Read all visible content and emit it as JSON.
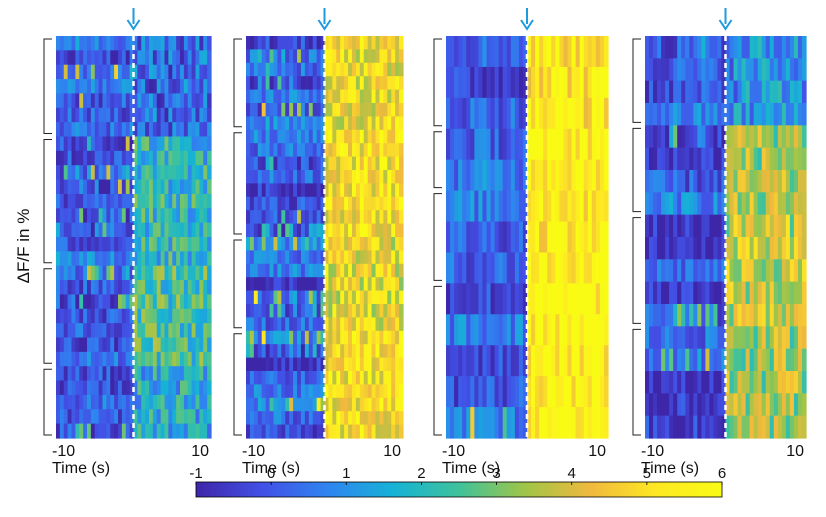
{
  "chart_data": {
    "type": "heatmap",
    "ylabel": "ΔF/F in %",
    "colorbar": {
      "min": -1,
      "max": 6,
      "ticks": [
        "-1",
        "0",
        "1",
        "2",
        "3",
        "4",
        "5",
        "6"
      ],
      "colormap": [
        "#3e26a8",
        "#4250e6",
        "#2f84f0",
        "#16b2d6",
        "#3fc29b",
        "#9fc548",
        "#f0b93d",
        "#fde823",
        "#f9fb15"
      ]
    },
    "event_marker": {
      "time": 0,
      "arrow_color": "#1e9be0",
      "line_color": "#ffffff"
    },
    "panels": [
      {
        "xlabel": "Time (s)",
        "x_range": [
          -10,
          10
        ],
        "x_ticklabels": [
          "-10",
          "10"
        ],
        "trace_count": 28,
        "groups": [
          7,
          9,
          7,
          5
        ],
        "response_level_per_group": [
          0.25,
          1.9,
          2.4,
          1.6
        ]
      },
      {
        "xlabel": "Time (s)",
        "x_range": [
          -10,
          10
        ],
        "x_ticklabels": [
          "-10",
          "10"
        ],
        "trace_count": 30,
        "groups": [
          7,
          8,
          7,
          8
        ],
        "response_level_per_group": [
          4.6,
          4.9,
          4.4,
          4.9
        ]
      },
      {
        "xlabel": "Time (s)",
        "x_range": [
          -10,
          10
        ],
        "x_ticklabels": [
          "-10",
          "10"
        ],
        "trace_count": 13,
        "groups": [
          3,
          2,
          3,
          5
        ],
        "response_level_per_group": [
          5.4,
          5.8,
          5.6,
          5.8
        ]
      },
      {
        "xlabel": "Time (s)",
        "x_range": [
          -10,
          10
        ],
        "x_ticklabels": [
          "-10",
          "10"
        ],
        "trace_count": 18,
        "groups": [
          4,
          4,
          5,
          5
        ],
        "response_level_per_group": [
          1.0,
          3.4,
          3.8,
          3.4
        ]
      }
    ]
  }
}
